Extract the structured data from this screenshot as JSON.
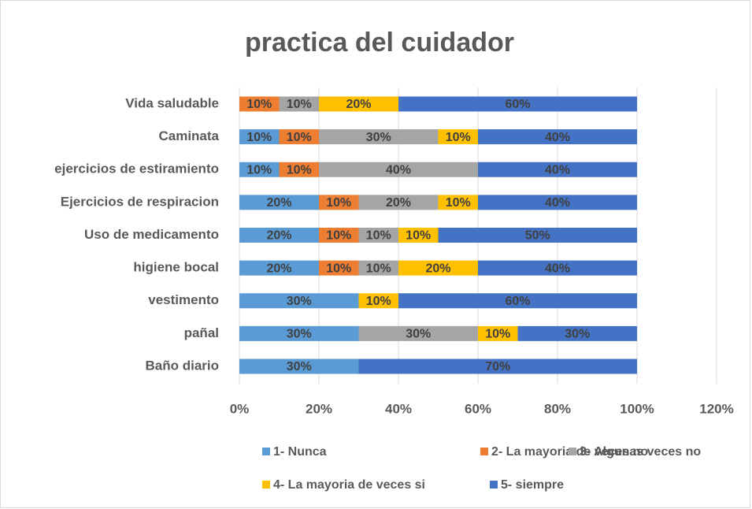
{
  "chart_data": {
    "type": "stacked_bar_horizontal",
    "title": "practica del cuidador",
    "categories": [
      "Vida saludable",
      "Caminata",
      "ejercicios de estiramiento",
      "Ejercicios de respiracion",
      "Uso de medicamento",
      "higiene bocal",
      "vestimento",
      "pañal",
      "Baño diario"
    ],
    "series": [
      {
        "name": "1- Nunca",
        "color": "#5b9bd5",
        "values": [
          0,
          10,
          10,
          20,
          20,
          20,
          30,
          30,
          30
        ],
        "value_labels": [
          null,
          "10%",
          "10%",
          "20%",
          "20%",
          "20%",
          "30%",
          "30%",
          "30%"
        ]
      },
      {
        "name": "2- La mayoria de veces no",
        "color": "#ed7d31",
        "values": [
          10,
          10,
          10,
          10,
          10,
          10,
          0,
          0,
          0
        ],
        "value_labels": [
          "10%",
          "10%",
          "10%",
          "10%",
          "10%",
          "10%",
          null,
          null,
          null
        ]
      },
      {
        "name": "3- Algunas veces no",
        "color": "#a5a5a5",
        "values": [
          10,
          30,
          40,
          20,
          10,
          10,
          0,
          30,
          0
        ],
        "value_labels": [
          "10%",
          "30%",
          "40%",
          "20%",
          "10%",
          "10%",
          null,
          "30%",
          null
        ]
      },
      {
        "name": "4- La mayoria de veces si",
        "color": "#ffc000",
        "values": [
          20,
          10,
          0,
          10,
          10,
          20,
          10,
          10,
          0
        ],
        "value_labels": [
          "20%",
          "10%",
          null,
          "10%",
          "10%",
          "20%",
          "10%",
          "10%",
          null
        ]
      },
      {
        "name": "5- siempre",
        "color": "#4472c4",
        "values": [
          60,
          40,
          40,
          40,
          50,
          40,
          60,
          30,
          70
        ],
        "value_labels": [
          "60%",
          "40%",
          "40%",
          "40%",
          "50%",
          "40%",
          "60%",
          "30%",
          "70%"
        ]
      }
    ],
    "xlim": [
      0,
      120
    ],
    "xticks": [
      {
        "value": 0,
        "label": "0%"
      },
      {
        "value": 20,
        "label": "20%"
      },
      {
        "value": 40,
        "label": "40%"
      },
      {
        "value": 60,
        "label": "60%"
      },
      {
        "value": 80,
        "label": "80%"
      },
      {
        "value": 100,
        "label": "100%"
      },
      {
        "value": 120,
        "label": "120%"
      }
    ],
    "grid": true
  }
}
